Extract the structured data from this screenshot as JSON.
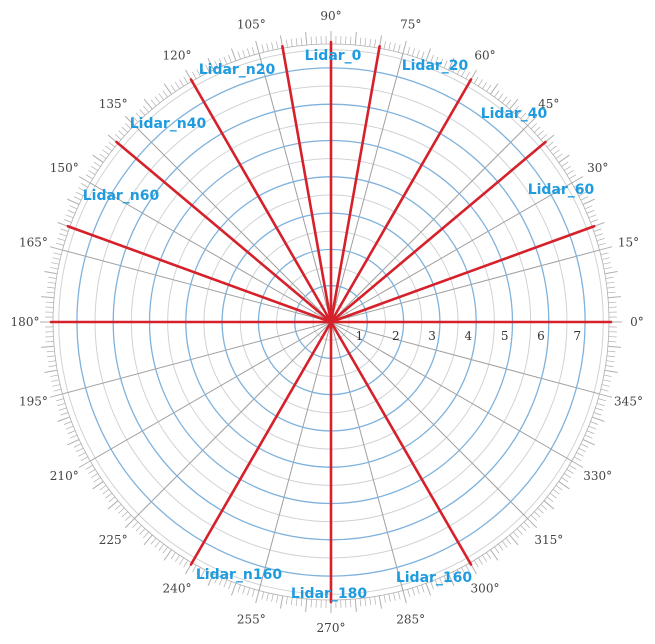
{
  "colors": {
    "ring": "#7fb2dc",
    "inner_ring": "#cfd3d7",
    "spoke": "#a0a0a0",
    "axis": "#222222",
    "lidar": "#d6202a",
    "label": "#1f9ce0",
    "tick": "#b0b0b0"
  },
  "radial_labels": [
    "1",
    "2",
    "3",
    "4",
    "5",
    "6",
    "7"
  ],
  "angle_labels": [
    {
      "angle": 0,
      "text": "0°"
    },
    {
      "angle": 15,
      "text": "15°"
    },
    {
      "angle": 30,
      "text": "30°"
    },
    {
      "angle": 45,
      "text": "45°"
    },
    {
      "angle": 60,
      "text": "60°"
    },
    {
      "angle": 75,
      "text": "75°"
    },
    {
      "angle": 90,
      "text": "90°"
    },
    {
      "angle": 105,
      "text": "105°"
    },
    {
      "angle": 120,
      "text": "120°"
    },
    {
      "angle": 135,
      "text": "135°"
    },
    {
      "angle": 150,
      "text": "150°"
    },
    {
      "angle": 165,
      "text": "165°"
    },
    {
      "angle": 180,
      "text": "180°"
    },
    {
      "angle": 195,
      "text": "195°"
    },
    {
      "angle": 210,
      "text": "210°"
    },
    {
      "angle": 225,
      "text": "225°"
    },
    {
      "angle": 240,
      "text": "240°"
    },
    {
      "angle": 255,
      "text": "255°"
    },
    {
      "angle": 270,
      "text": "270°"
    },
    {
      "angle": 285,
      "text": "285°"
    },
    {
      "angle": 300,
      "text": "300°"
    },
    {
      "angle": 315,
      "text": "315°"
    },
    {
      "angle": 330,
      "text": "330°"
    },
    {
      "angle": 345,
      "text": "345°"
    }
  ],
  "lidar_beams": [
    {
      "angle": 90,
      "text": "Lidar_0"
    },
    {
      "angle": 80,
      "text": "Lidar_20"
    },
    {
      "angle": 60,
      "text": "Lidar_40"
    },
    {
      "angle": 40,
      "text": "Lidar_60"
    },
    {
      "angle": 100,
      "text": "Lidar_n20"
    },
    {
      "angle": 120,
      "text": "Lidar_n40"
    },
    {
      "angle": 140,
      "text": "Lidar_n60"
    },
    {
      "angle": 20,
      "text": ""
    },
    {
      "angle": 160,
      "text": ""
    },
    {
      "angle": 0,
      "text": ""
    },
    {
      "angle": 180,
      "text": ""
    },
    {
      "angle": 270,
      "text": "Lidar_180"
    },
    {
      "angle": 300,
      "text": "Lidar_160"
    },
    {
      "angle": 240,
      "text": "Lidar_n160"
    }
  ]
}
